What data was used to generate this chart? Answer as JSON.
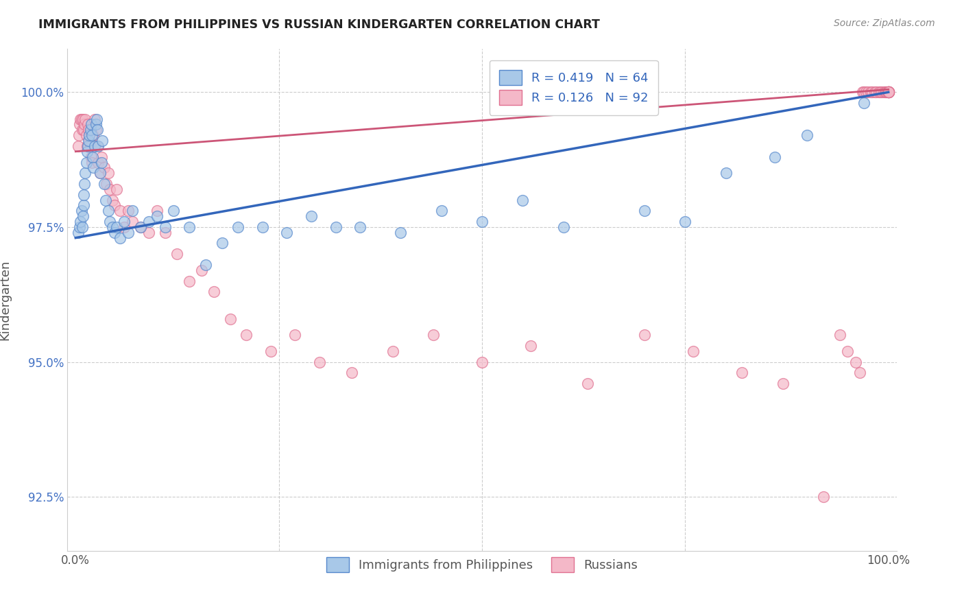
{
  "title": "IMMIGRANTS FROM PHILIPPINES VS RUSSIAN KINDERGARTEN CORRELATION CHART",
  "source": "Source: ZipAtlas.com",
  "ylabel": "Kindergarten",
  "ylim": [
    91.5,
    100.8
  ],
  "xlim": [
    -0.01,
    1.01
  ],
  "yticks": [
    92.5,
    95.0,
    97.5,
    100.0
  ],
  "ytick_labels": [
    "92.5%",
    "95.0%",
    "97.5%",
    "100.0%"
  ],
  "blue_r": 0.419,
  "blue_n": 64,
  "pink_r": 0.126,
  "pink_n": 92,
  "blue_color": "#a8c8e8",
  "pink_color": "#f4b8c8",
  "blue_edge_color": "#5588cc",
  "pink_edge_color": "#e07090",
  "blue_line_color": "#3366bb",
  "pink_line_color": "#cc5577",
  "background_color": "#ffffff",
  "grid_color": "#cccccc",
  "title_color": "#222222",
  "axis_label_color": "#555555",
  "tick_label_color_y": "#4472c4",
  "tick_label_color_x": "#555555",
  "blue_scatter_x": [
    0.003,
    0.005,
    0.006,
    0.007,
    0.008,
    0.009,
    0.01,
    0.01,
    0.011,
    0.012,
    0.013,
    0.014,
    0.015,
    0.016,
    0.017,
    0.018,
    0.019,
    0.02,
    0.021,
    0.022,
    0.023,
    0.025,
    0.026,
    0.027,
    0.028,
    0.03,
    0.032,
    0.033,
    0.035,
    0.037,
    0.04,
    0.042,
    0.045,
    0.048,
    0.05,
    0.055,
    0.06,
    0.065,
    0.07,
    0.08,
    0.09,
    0.1,
    0.11,
    0.12,
    0.14,
    0.16,
    0.18,
    0.2,
    0.23,
    0.26,
    0.29,
    0.32,
    0.35,
    0.4,
    0.45,
    0.5,
    0.55,
    0.6,
    0.7,
    0.75,
    0.8,
    0.86,
    0.9,
    0.97
  ],
  "blue_scatter_y": [
    97.4,
    97.5,
    97.6,
    97.8,
    97.5,
    97.7,
    97.9,
    98.1,
    98.3,
    98.5,
    98.7,
    98.9,
    99.0,
    99.1,
    99.2,
    99.3,
    99.4,
    99.2,
    98.8,
    98.6,
    99.0,
    99.4,
    99.5,
    99.3,
    99.0,
    98.5,
    98.7,
    99.1,
    98.3,
    98.0,
    97.8,
    97.6,
    97.5,
    97.4,
    97.5,
    97.3,
    97.6,
    97.4,
    97.8,
    97.5,
    97.6,
    97.7,
    97.5,
    97.8,
    97.5,
    96.8,
    97.2,
    97.5,
    97.5,
    97.4,
    97.7,
    97.5,
    97.5,
    97.4,
    97.8,
    97.6,
    98.0,
    97.5,
    97.8,
    97.6,
    98.5,
    98.8,
    99.2,
    99.8
  ],
  "pink_scatter_x": [
    0.003,
    0.004,
    0.005,
    0.006,
    0.007,
    0.008,
    0.009,
    0.01,
    0.011,
    0.012,
    0.013,
    0.014,
    0.015,
    0.016,
    0.017,
    0.018,
    0.019,
    0.02,
    0.022,
    0.023,
    0.025,
    0.027,
    0.028,
    0.03,
    0.032,
    0.035,
    0.038,
    0.04,
    0.042,
    0.045,
    0.048,
    0.05,
    0.055,
    0.06,
    0.065,
    0.07,
    0.08,
    0.09,
    0.1,
    0.11,
    0.125,
    0.14,
    0.155,
    0.17,
    0.19,
    0.21,
    0.24,
    0.27,
    0.3,
    0.34,
    0.39,
    0.44,
    0.5,
    0.56,
    0.63,
    0.7,
    0.76,
    0.82,
    0.87,
    0.92,
    0.94,
    0.95,
    0.96,
    0.965,
    0.968,
    0.97,
    0.972,
    0.975,
    0.978,
    0.98,
    0.983,
    0.985,
    0.988,
    0.99,
    0.992,
    0.994,
    0.996,
    0.997,
    0.998,
    0.999,
    1.0,
    1.0,
    1.0,
    1.0,
    1.0,
    1.0,
    1.0,
    1.0,
    1.0,
    1.0,
    1.0,
    1.0
  ],
  "pink_scatter_y": [
    99.0,
    99.2,
    99.4,
    99.5,
    99.5,
    99.3,
    99.5,
    99.3,
    99.4,
    99.5,
    99.2,
    99.0,
    99.4,
    99.3,
    99.1,
    99.0,
    98.8,
    98.7,
    99.2,
    99.5,
    99.3,
    99.0,
    98.7,
    98.5,
    98.8,
    98.6,
    98.3,
    98.5,
    98.2,
    98.0,
    97.9,
    98.2,
    97.8,
    97.5,
    97.8,
    97.6,
    97.5,
    97.4,
    97.8,
    97.4,
    97.0,
    96.5,
    96.7,
    96.3,
    95.8,
    95.5,
    95.2,
    95.5,
    95.0,
    94.8,
    95.2,
    95.5,
    95.0,
    95.3,
    94.6,
    95.5,
    95.2,
    94.8,
    94.6,
    92.5,
    95.5,
    95.2,
    95.0,
    94.8,
    100.0,
    100.0,
    100.0,
    100.0,
    100.0,
    100.0,
    100.0,
    100.0,
    100.0,
    100.0,
    100.0,
    100.0,
    100.0,
    100.0,
    100.0,
    100.0,
    100.0,
    100.0,
    100.0,
    100.0,
    100.0,
    100.0,
    100.0,
    100.0,
    100.0,
    100.0,
    100.0,
    100.0
  ],
  "blue_line_x0": 0.0,
  "blue_line_y0": 97.3,
  "blue_line_x1": 1.0,
  "blue_line_y1": 100.0,
  "pink_line_x0": 0.0,
  "pink_line_y0": 98.9,
  "pink_line_x1": 1.0,
  "pink_line_y1": 100.05
}
